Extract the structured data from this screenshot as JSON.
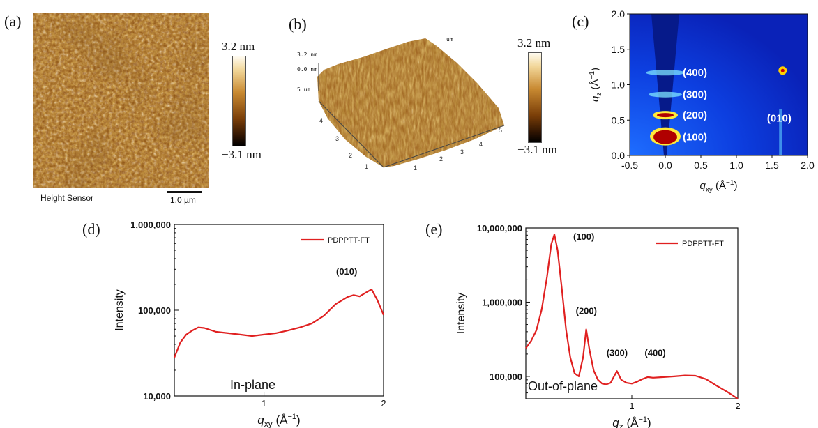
{
  "panels": {
    "a": {
      "label": "(a)",
      "caption": "Height Sensor",
      "scalebar": "1.0 µm",
      "cbar_max": "3.2 nm",
      "cbar_min": "−3.1 nm"
    },
    "b": {
      "label": "(b)",
      "cbar_max": "3.2 nm",
      "cbar_min": "−3.1 nm",
      "z_labels": [
        "3.2 nm",
        "0.0 nm",
        "5 um"
      ],
      "um_tag": "um"
    },
    "c": {
      "label": "(c)",
      "peaks": [
        "(400)",
        "(300)",
        "(200)",
        "(100)",
        "(010)"
      ]
    },
    "d": {
      "label": "(d)",
      "annotation": "In-plane",
      "peak": "(010)"
    },
    "e": {
      "label": "(e)",
      "annotation": "Out-of-plane",
      "peaks": [
        "(100)",
        "(200)",
        "(300)",
        "(400)"
      ]
    }
  },
  "colors": {
    "afm_light": "#f4dcaa",
    "afm_dark": "#3a1c05",
    "line_red": "#e02020",
    "giwaxs_bg": "#0a35d8"
  },
  "chart_data": [
    {
      "type": "heatmap",
      "panel": "c",
      "xlabel": "q_xy (Å⁻¹)",
      "ylabel": "q_z (Å⁻¹)",
      "xlim": [
        -0.5,
        2.0
      ],
      "ylim": [
        0.0,
        2.0
      ],
      "xticks": [
        "-0.5",
        "0.0",
        "0.5",
        "1.0",
        "1.5",
        "2.0"
      ],
      "yticks": [
        "0.0",
        "0.5",
        "1.0",
        "1.5",
        "2.0"
      ],
      "features": [
        {
          "label": "(100)",
          "qxy": 0.0,
          "qz": 0.27
        },
        {
          "label": "(200)",
          "qxy": 0.0,
          "qz": 0.57
        },
        {
          "label": "(300)",
          "qxy": 0.0,
          "qz": 0.86
        },
        {
          "label": "(400)",
          "qxy": 0.0,
          "qz": 1.17
        },
        {
          "label": "(010)",
          "qxy": 1.65,
          "qz": 0.3
        }
      ]
    },
    {
      "type": "line",
      "panel": "d",
      "xlabel": "q_xy (Å⁻¹)",
      "ylabel": "Intensity",
      "yscale": "log",
      "ylim": [
        10000,
        1000000
      ],
      "yticks": [
        "10,000",
        "100,000",
        "1,000,000"
      ],
      "xticks": [
        "1",
        "2"
      ],
      "xlim": [
        0.25,
        2.0
      ],
      "series": [
        {
          "name": "PDPPTT-FT",
          "x": [
            0.25,
            0.3,
            0.35,
            0.4,
            0.45,
            0.5,
            0.6,
            0.7,
            0.8,
            0.9,
            1.0,
            1.1,
            1.2,
            1.3,
            1.4,
            1.5,
            1.6,
            1.7,
            1.75,
            1.8,
            1.85,
            1.9,
            1.95,
            2.0
          ],
          "y": [
            28000,
            42000,
            52000,
            58000,
            63000,
            62000,
            56000,
            54000,
            52000,
            50000,
            52000,
            54000,
            58000,
            63000,
            70000,
            86000,
            118000,
            143000,
            150000,
            145000,
            160000,
            175000,
            130000,
            88000
          ]
        }
      ]
    },
    {
      "type": "line",
      "panel": "e",
      "xlabel": "q_z (Å⁻¹)",
      "ylabel": "Intensity",
      "yscale": "log",
      "ylim": [
        50000,
        10000000
      ],
      "yticks": [
        "100,000",
        "1,000,000",
        "10,000,000"
      ],
      "xticks": [
        "1",
        "2"
      ],
      "xlim": [
        0.0,
        2.0
      ],
      "series": [
        {
          "name": "PDPPTT-FT",
          "x": [
            0.0,
            0.05,
            0.1,
            0.15,
            0.2,
            0.24,
            0.27,
            0.3,
            0.34,
            0.38,
            0.42,
            0.46,
            0.5,
            0.54,
            0.57,
            0.6,
            0.64,
            0.68,
            0.72,
            0.76,
            0.8,
            0.84,
            0.86,
            0.9,
            0.95,
            1.0,
            1.05,
            1.1,
            1.15,
            1.2,
            1.3,
            1.4,
            1.5,
            1.6,
            1.7,
            1.8,
            1.9,
            2.0
          ],
          "y": [
            240000,
            300000,
            420000,
            800000,
            2200000,
            6000000,
            8200000,
            5000000,
            1500000,
            420000,
            180000,
            110000,
            100000,
            180000,
            430000,
            230000,
            120000,
            90000,
            80000,
            78000,
            82000,
            105000,
            118000,
            90000,
            82000,
            80000,
            85000,
            92000,
            98000,
            96000,
            98000,
            100000,
            103000,
            102000,
            92000,
            75000,
            62000,
            50000
          ]
        }
      ]
    }
  ]
}
